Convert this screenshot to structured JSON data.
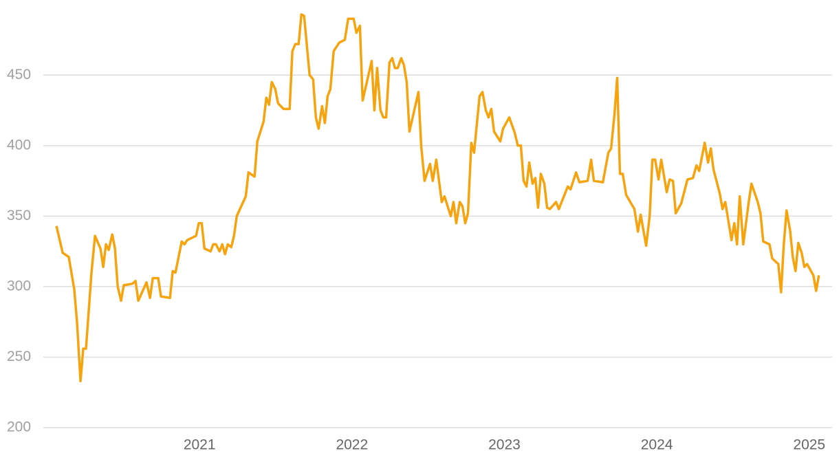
{
  "chart_data": {
    "type": "line",
    "color": "#f5a30f",
    "grid": true,
    "xlim": [
      2019.975,
      2025.15
    ],
    "xticks": [
      2021,
      2022,
      2023,
      2024,
      2025
    ],
    "ylim": [
      200,
      500
    ],
    "yticks": [
      200,
      250,
      300,
      350,
      400,
      450
    ],
    "x": [
      2020.061,
      2020.102,
      2020.142,
      2020.178,
      2020.196,
      2020.219,
      2020.237,
      2020.255,
      2020.291,
      2020.314,
      2020.35,
      2020.368,
      2020.386,
      2020.404,
      2020.427,
      2020.445,
      2020.463,
      2020.485,
      2020.503,
      2020.558,
      2020.58,
      2020.598,
      2020.652,
      2020.675,
      2020.693,
      2020.729,
      2020.747,
      2020.806,
      2020.824,
      2020.842,
      2020.883,
      2020.901,
      2020.919,
      2020.977,
      2020.995,
      2021.014,
      2021.032,
      2021.072,
      2021.09,
      2021.108,
      2021.131,
      2021.149,
      2021.167,
      2021.185,
      2021.208,
      2021.226,
      2021.244,
      2021.303,
      2021.321,
      2021.361,
      2021.379,
      2021.42,
      2021.438,
      2021.456,
      2021.474,
      2021.497,
      2021.515,
      2021.551,
      2021.591,
      2021.609,
      2021.628,
      2021.65,
      2021.668,
      2021.686,
      2021.722,
      2021.745,
      2021.763,
      2021.781,
      2021.804,
      2021.822,
      2021.84,
      2021.858,
      2021.88,
      2021.916,
      2021.953,
      2021.975,
      2022.011,
      2022.029,
      2022.052,
      2022.07,
      2022.129,
      2022.147,
      2022.165,
      2022.187,
      2022.206,
      2022.224,
      2022.246,
      2022.264,
      2022.282,
      2022.3,
      2022.323,
      2022.341,
      2022.359,
      2022.377,
      2022.436,
      2022.454,
      2022.476,
      2022.512,
      2022.53,
      2022.553,
      2022.589,
      2022.607,
      2022.648,
      2022.666,
      2022.684,
      2022.707,
      2022.725,
      2022.743,
      2022.761,
      2022.783,
      2022.801,
      2022.837,
      2022.856,
      2022.878,
      2022.896,
      2022.914,
      2022.932,
      2022.973,
      2022.991,
      2023.032,
      2023.068,
      2023.088,
      2023.108,
      2023.126,
      2023.145,
      2023.163,
      2023.185,
      2023.203,
      2023.221,
      2023.239,
      2023.262,
      2023.28,
      2023.298,
      2023.339,
      2023.357,
      2023.416,
      2023.434,
      2023.47,
      2023.492,
      2023.546,
      2023.569,
      2023.587,
      2023.646,
      2023.682,
      2023.7,
      2023.722,
      2023.74,
      2023.758,
      2023.776,
      2023.799,
      2023.853,
      2023.876,
      2023.894,
      2023.93,
      2023.953,
      2023.971,
      2023.989,
      2024.011,
      2024.029,
      2024.065,
      2024.084,
      2024.106,
      2024.124,
      2024.16,
      2024.201,
      2024.237,
      2024.26,
      2024.278,
      2024.314,
      2024.336,
      2024.354,
      2024.372,
      2024.413,
      2024.431,
      2024.449,
      2024.49,
      2024.508,
      2024.526,
      2024.544,
      2024.567,
      2024.603,
      2024.621,
      2024.662,
      2024.68,
      2024.698,
      2024.739,
      2024.757,
      2024.797,
      2024.815,
      2024.833,
      2024.851,
      2024.874,
      2024.892,
      2024.91,
      2024.928,
      2024.95,
      2024.968,
      2024.986,
      2025.027,
      2025.045,
      2025.063
    ],
    "values": [
      343,
      324,
      321,
      298,
      275,
      233,
      256,
      256,
      310,
      336,
      327,
      314,
      330,
      326,
      337,
      327,
      300,
      290,
      301,
      302,
      304,
      290,
      303,
      292,
      306,
      306,
      293,
      292,
      311,
      310,
      332,
      330,
      333,
      336,
      345,
      345,
      327,
      325,
      330,
      330,
      325,
      330,
      323,
      330,
      328,
      336,
      350,
      364,
      381,
      378,
      403,
      417,
      434,
      429,
      445,
      440,
      430,
      426,
      426,
      467,
      472,
      472,
      493,
      492,
      450,
      447,
      420,
      412,
      428,
      416,
      435,
      440,
      467,
      473,
      475,
      490,
      490,
      480,
      485,
      432,
      460,
      425,
      455,
      425,
      420,
      420,
      459,
      462,
      455,
      455,
      462,
      457,
      445,
      410,
      438,
      400,
      375,
      387,
      375,
      390,
      360,
      364,
      350,
      360,
      345,
      360,
      357,
      345,
      352,
      402,
      395,
      435,
      438,
      425,
      420,
      426,
      410,
      403,
      412,
      420,
      409,
      400,
      400,
      375,
      371,
      388,
      373,
      377,
      356,
      380,
      373,
      356,
      355,
      360,
      355,
      371,
      369,
      381,
      374,
      375,
      390,
      375,
      374,
      395,
      398,
      422,
      448,
      380,
      380,
      365,
      355,
      339,
      351,
      329,
      350,
      390,
      390,
      376,
      390,
      367,
      376,
      375,
      352,
      359,
      376,
      377,
      386,
      382,
      402,
      388,
      398,
      383,
      366,
      355,
      360,
      333,
      345,
      330,
      364,
      330,
      360,
      373,
      360,
      352,
      332,
      330,
      320,
      316,
      296,
      330,
      354,
      340,
      321,
      311,
      331,
      324,
      314,
      316,
      308,
      297,
      308
    ]
  }
}
